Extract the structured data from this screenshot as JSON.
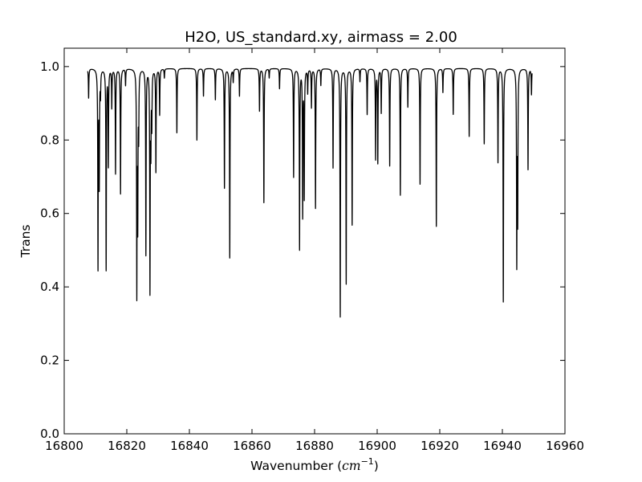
{
  "chart_data": {
    "type": "line",
    "title": "H2O, US_standard.xy, airmass = 2.00",
    "xlabel_prefix": "Wavenumber (",
    "xlabel_unit": "cm",
    "xlabel_exp": "−1",
    "xlabel_suffix": ")",
    "ylabel": "Trans",
    "xlim": [
      16800,
      16960
    ],
    "ylim": [
      0.0,
      1.05
    ],
    "grid": false,
    "x_range": [
      16807.5,
      16949.5
    ],
    "baseline": 0.995,
    "x_ticks": [
      16800,
      16820,
      16840,
      16860,
      16880,
      16900,
      16920,
      16940,
      16960
    ],
    "x_tick_labels": [
      "16800",
      "16820",
      "16840",
      "16860",
      "16880",
      "16900",
      "16920",
      "16940",
      "16960"
    ],
    "y_ticks": [
      0.0,
      0.2,
      0.4,
      0.6,
      0.8,
      1.0
    ],
    "y_tick_labels": [
      "0.0",
      "0.2",
      "0.4",
      "0.6",
      "0.8",
      "1.0"
    ],
    "absorption_lines": [
      {
        "x": 16807.8,
        "min": 0.915
      },
      {
        "x": 16810.8,
        "min": 0.46
      },
      {
        "x": 16811.2,
        "min": 0.69
      },
      {
        "x": 16811.6,
        "min": 0.93
      },
      {
        "x": 16813.4,
        "min": 0.45
      },
      {
        "x": 16814.1,
        "min": 0.735
      },
      {
        "x": 16815.2,
        "min": 0.89
      },
      {
        "x": 16816.4,
        "min": 0.71
      },
      {
        "x": 16818.0,
        "min": 0.655
      },
      {
        "x": 16819.6,
        "min": 0.95
      },
      {
        "x": 16823.2,
        "min": 0.4
      },
      {
        "x": 16823.5,
        "min": 0.6
      },
      {
        "x": 16823.8,
        "min": 0.83
      },
      {
        "x": 16826.1,
        "min": 0.49
      },
      {
        "x": 16827.4,
        "min": 0.4
      },
      {
        "x": 16827.7,
        "min": 0.8
      },
      {
        "x": 16828.0,
        "min": 0.85
      },
      {
        "x": 16829.3,
        "min": 0.715
      },
      {
        "x": 16830.5,
        "min": 0.87
      },
      {
        "x": 16832.0,
        "min": 0.97
      },
      {
        "x": 16836.0,
        "min": 0.82
      },
      {
        "x": 16842.4,
        "min": 0.8
      },
      {
        "x": 16844.5,
        "min": 0.92
      },
      {
        "x": 16848.3,
        "min": 0.91
      },
      {
        "x": 16851.2,
        "min": 0.67
      },
      {
        "x": 16852.9,
        "min": 0.48
      },
      {
        "x": 16854.0,
        "min": 0.96
      },
      {
        "x": 16856.0,
        "min": 0.92
      },
      {
        "x": 16862.4,
        "min": 0.88
      },
      {
        "x": 16863.8,
        "min": 0.63
      },
      {
        "x": 16865.5,
        "min": 0.97
      },
      {
        "x": 16868.8,
        "min": 0.94
      },
      {
        "x": 16873.3,
        "min": 0.7
      },
      {
        "x": 16875.2,
        "min": 0.505
      },
      {
        "x": 16876.2,
        "min": 0.6
      },
      {
        "x": 16876.7,
        "min": 0.65
      },
      {
        "x": 16877.8,
        "min": 0.93
      },
      {
        "x": 16879.0,
        "min": 0.89
      },
      {
        "x": 16880.3,
        "min": 0.615
      },
      {
        "x": 16882.0,
        "min": 0.95
      },
      {
        "x": 16885.9,
        "min": 0.725
      },
      {
        "x": 16888.2,
        "min": 0.32
      },
      {
        "x": 16890.1,
        "min": 0.41
      },
      {
        "x": 16892.0,
        "min": 0.57
      },
      {
        "x": 16894.5,
        "min": 0.96
      },
      {
        "x": 16896.8,
        "min": 0.87
      },
      {
        "x": 16899.5,
        "min": 0.75
      },
      {
        "x": 16900.2,
        "min": 0.74
      },
      {
        "x": 16901.3,
        "min": 0.875
      },
      {
        "x": 16904.0,
        "min": 0.73
      },
      {
        "x": 16907.4,
        "min": 0.65
      },
      {
        "x": 16909.8,
        "min": 0.89
      },
      {
        "x": 16913.7,
        "min": 0.68
      },
      {
        "x": 16918.9,
        "min": 0.565
      },
      {
        "x": 16921.0,
        "min": 0.93
      },
      {
        "x": 16924.3,
        "min": 0.87
      },
      {
        "x": 16929.4,
        "min": 0.81
      },
      {
        "x": 16934.2,
        "min": 0.79
      },
      {
        "x": 16938.6,
        "min": 0.74
      },
      {
        "x": 16940.3,
        "min": 0.36
      },
      {
        "x": 16944.6,
        "min": 0.48
      },
      {
        "x": 16944.9,
        "min": 0.6
      },
      {
        "x": 16948.2,
        "min": 0.72
      },
      {
        "x": 16949.3,
        "min": 0.925
      }
    ]
  }
}
